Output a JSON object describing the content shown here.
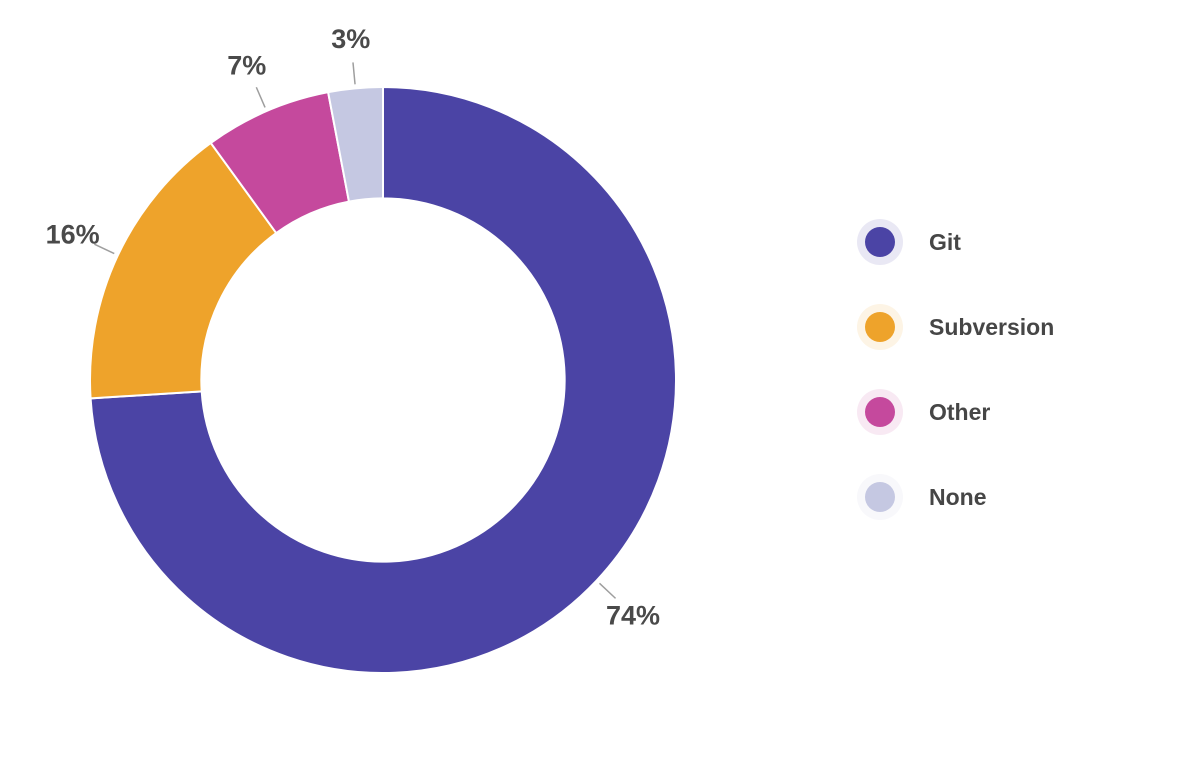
{
  "chart_data": {
    "type": "pie",
    "subtype": "donut",
    "title": "",
    "categories": [
      "Git",
      "Subversion",
      "Other",
      "None"
    ],
    "values": [
      74,
      16,
      7,
      3
    ],
    "percent_labels": [
      "74%",
      "16%",
      "7%",
      "3%"
    ],
    "colors": [
      "#4b44a5",
      "#eea32b",
      "#c5499d",
      "#c5c8e2"
    ],
    "unit": "%",
    "start_angle_deg": 0,
    "direction": "clockwise",
    "inner_radius_ratio": 0.62,
    "legend_position": "right",
    "label_color": "#4a4a4a",
    "leader_line_color": "#9e9e9e"
  },
  "legend": {
    "items": [
      {
        "label": "Git",
        "color": "#4b44a5"
      },
      {
        "label": "Subversion",
        "color": "#eea32b"
      },
      {
        "label": "Other",
        "color": "#c5499d"
      },
      {
        "label": "None",
        "color": "#c5c8e2"
      }
    ]
  }
}
